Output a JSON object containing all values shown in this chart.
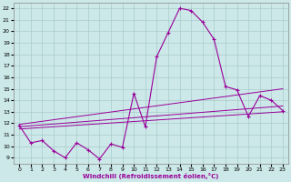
{
  "xlabel": "Windchill (Refroidissement éolien,°C)",
  "bg_color": "#cce8e8",
  "line_color": "#990099",
  "grid_color": "#aacccc",
  "hours": [
    0,
    1,
    2,
    3,
    4,
    5,
    6,
    7,
    8,
    9,
    10,
    11,
    12,
    13,
    14,
    15,
    16,
    17,
    18,
    19,
    20,
    21,
    22,
    23
  ],
  "values": [
    11.8,
    10.3,
    10.5,
    9.6,
    9.0,
    10.3,
    9.7,
    8.9,
    10.2,
    9.9,
    14.6,
    11.7,
    17.8,
    19.9,
    22.0,
    21.8,
    20.8,
    19.3,
    15.2,
    14.9,
    12.6,
    14.4,
    14.0,
    13.1
  ],
  "trend1": [
    11.5,
    23,
    13.0
  ],
  "trend2": [
    11.7,
    23,
    13.5
  ],
  "trend3": [
    11.9,
    23,
    15.0
  ],
  "xlim": [
    -0.5,
    23.5
  ],
  "ylim": [
    8.5,
    22.5
  ],
  "yticks": [
    9,
    10,
    11,
    12,
    13,
    14,
    15,
    16,
    17,
    18,
    19,
    20,
    21,
    22
  ],
  "xticks": [
    0,
    1,
    2,
    3,
    4,
    5,
    6,
    7,
    8,
    9,
    10,
    11,
    12,
    13,
    14,
    15,
    16,
    17,
    18,
    19,
    20,
    21,
    22,
    23
  ]
}
